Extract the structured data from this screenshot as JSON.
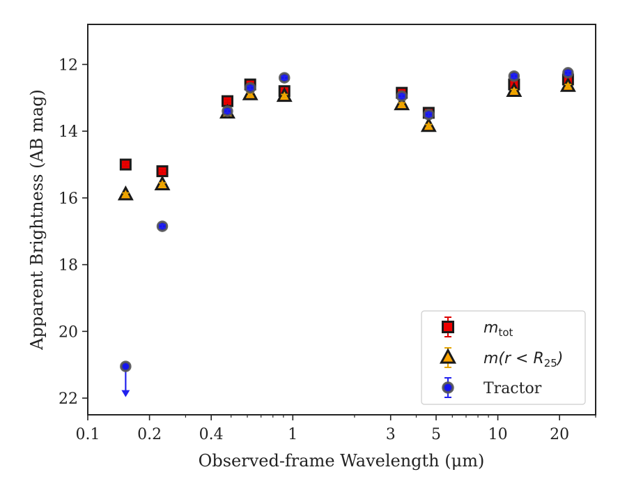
{
  "chart_data": {
    "type": "scatter",
    "xlabel": "Observed-frame Wavelength (μm)",
    "ylabel": "Apparent Brightness (AB mag)",
    "xscale": "log",
    "xlim": [
      0.1,
      30
    ],
    "ylim": [
      22.5,
      10.8
    ],
    "y_inverted": true,
    "xticks": [
      0.1,
      0.2,
      0.4,
      1,
      3,
      5,
      10,
      20
    ],
    "xtick_labels": [
      "0.1",
      "0.2",
      "0.4",
      "1",
      "3",
      "5",
      "10",
      "20"
    ],
    "yticks": [
      12,
      14,
      16,
      18,
      20,
      22
    ],
    "ytick_labels": [
      "12",
      "14",
      "16",
      "18",
      "20",
      "22"
    ],
    "legend": {
      "location": "lower right",
      "entries": [
        {
          "series": 0,
          "main": "m",
          "sub": "tot",
          "suffix": ""
        },
        {
          "series": 1,
          "main": "m(r < R",
          "sub": "25",
          "suffix": ")"
        },
        {
          "series": 2,
          "main": "Tractor",
          "sub": "",
          "suffix": ""
        }
      ]
    },
    "series": [
      {
        "marker": "square",
        "face": "#ee0000",
        "edge": "#1a1a1a",
        "errcolor": "#dd0000",
        "points": [
          {
            "x": 0.153,
            "y": 15.0,
            "err": 0.05
          },
          {
            "x": 0.231,
            "y": 15.2,
            "err": 0.05
          },
          {
            "x": 0.48,
            "y": 13.1,
            "err": 0.05
          },
          {
            "x": 0.62,
            "y": 12.6,
            "err": 0.05
          },
          {
            "x": 0.91,
            "y": 12.8,
            "err": 0.05
          },
          {
            "x": 3.4,
            "y": 12.85,
            "err": 0.05
          },
          {
            "x": 4.6,
            "y": 13.45,
            "err": 0.05
          },
          {
            "x": 12.0,
            "y": 12.6,
            "err": 0.05
          },
          {
            "x": 22.0,
            "y": 12.45,
            "err": 0.05
          }
        ]
      },
      {
        "marker": "triangle",
        "face": "#ffa500",
        "edge": "#1a1a1a",
        "errcolor": "#e5a500",
        "points": [
          {
            "x": 0.153,
            "y": 15.9,
            "err": 0.05
          },
          {
            "x": 0.231,
            "y": 15.6,
            "err": 0.05
          },
          {
            "x": 0.48,
            "y": 13.45,
            "err": 0.05
          },
          {
            "x": 0.62,
            "y": 12.9,
            "err": 0.05
          },
          {
            "x": 0.91,
            "y": 12.95,
            "err": 0.05
          },
          {
            "x": 3.4,
            "y": 13.2,
            "err": 0.05
          },
          {
            "x": 4.6,
            "y": 13.85,
            "err": 0.05
          },
          {
            "x": 12.0,
            "y": 12.8,
            "err": 0.05
          },
          {
            "x": 22.0,
            "y": 12.65,
            "err": 0.05
          }
        ]
      },
      {
        "marker": "circle",
        "face": "#1515ee",
        "edge": "#555555",
        "errcolor": "#2222ee",
        "points": [
          {
            "x": 0.153,
            "y": 21.05,
            "upper_limit": true
          },
          {
            "x": 0.231,
            "y": 16.85,
            "err": 0.05
          },
          {
            "x": 0.48,
            "y": 13.4,
            "err": 0.05
          },
          {
            "x": 0.62,
            "y": 12.7,
            "err": 0.05
          },
          {
            "x": 0.91,
            "y": 12.4,
            "err": 0.05
          },
          {
            "x": 3.4,
            "y": 12.95,
            "err": 0.05
          },
          {
            "x": 4.6,
            "y": 13.5,
            "err": 0.05
          },
          {
            "x": 12.0,
            "y": 12.35,
            "err": 0.05
          },
          {
            "x": 22.0,
            "y": 12.25,
            "err": 0.05
          }
        ]
      }
    ]
  }
}
